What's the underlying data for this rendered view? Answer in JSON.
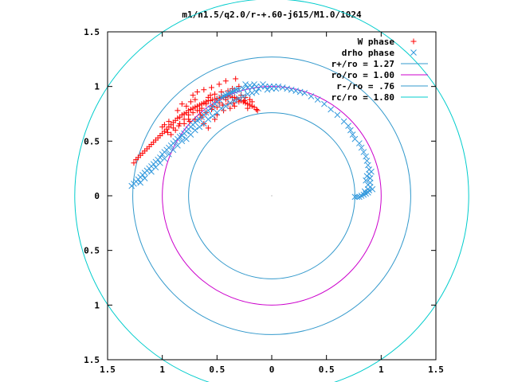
{
  "chart_data": {
    "type": "scatter",
    "title": "m1/n1.5/q2.0/r-+.60-j615/M1.0/1024",
    "xlabel": "",
    "ylabel": "",
    "xlim": [
      -1.5,
      1.5
    ],
    "ylim": [
      -1.5,
      1.5
    ],
    "x_tick_labels": [
      "1.5",
      "1",
      "0.5",
      "0",
      "0.5",
      "1",
      "1.5"
    ],
    "y_tick_labels": [
      "1.5",
      "1",
      "0.5",
      "0",
      "0.5",
      "1",
      "1.5"
    ],
    "grid": false,
    "legend_position": "top-right",
    "series": [
      {
        "name": "W phase",
        "marker": "+",
        "color": "#ff0000",
        "points": [
          [
            -1.26,
            0.3
          ],
          [
            -1.24,
            0.33
          ],
          [
            -1.22,
            0.35
          ],
          [
            -1.2,
            0.37
          ],
          [
            -1.18,
            0.39
          ],
          [
            -1.16,
            0.41
          ],
          [
            -1.14,
            0.43
          ],
          [
            -1.12,
            0.45
          ],
          [
            -1.1,
            0.47
          ],
          [
            -1.08,
            0.49
          ],
          [
            -1.06,
            0.51
          ],
          [
            -1.04,
            0.53
          ],
          [
            -1.02,
            0.55
          ],
          [
            -1.0,
            0.57
          ],
          [
            -0.98,
            0.59
          ],
          [
            -0.96,
            0.61
          ],
          [
            -0.94,
            0.63
          ],
          [
            -0.92,
            0.65
          ],
          [
            -0.9,
            0.67
          ],
          [
            -0.88,
            0.69
          ],
          [
            -0.86,
            0.71
          ],
          [
            -0.84,
            0.72
          ],
          [
            -0.82,
            0.74
          ],
          [
            -0.8,
            0.75
          ],
          [
            -0.78,
            0.76
          ],
          [
            -0.76,
            0.78
          ],
          [
            -0.74,
            0.79
          ],
          [
            -0.72,
            0.8
          ],
          [
            -0.7,
            0.81
          ],
          [
            -0.68,
            0.82
          ],
          [
            -0.66,
            0.83
          ],
          [
            -0.64,
            0.84
          ],
          [
            -0.62,
            0.85
          ],
          [
            -0.6,
            0.86
          ],
          [
            -0.58,
            0.87
          ],
          [
            -0.56,
            0.87
          ],
          [
            -0.54,
            0.88
          ],
          [
            -0.52,
            0.88
          ],
          [
            -0.5,
            0.89
          ],
          [
            -0.48,
            0.89
          ],
          [
            -0.46,
            0.9
          ],
          [
            -0.44,
            0.9
          ],
          [
            -0.42,
            0.9
          ],
          [
            -0.4,
            0.91
          ],
          [
            -0.38,
            0.91
          ],
          [
            -0.36,
            0.9
          ],
          [
            -0.34,
            0.9
          ],
          [
            -0.32,
            0.89
          ],
          [
            -0.3,
            0.88
          ],
          [
            -0.28,
            0.87
          ],
          [
            -0.26,
            0.86
          ],
          [
            -0.24,
            0.85
          ],
          [
            -0.22,
            0.84
          ],
          [
            -0.2,
            0.83
          ],
          [
            -0.18,
            0.82
          ],
          [
            -0.16,
            0.81
          ],
          [
            -0.14,
            0.79
          ],
          [
            -0.13,
            0.78
          ],
          [
            -0.95,
            0.58
          ],
          [
            -0.9,
            0.62
          ],
          [
            -0.85,
            0.64
          ],
          [
            -0.8,
            0.66
          ],
          [
            -0.75,
            0.68
          ],
          [
            -0.7,
            0.7
          ],
          [
            -0.65,
            0.74
          ],
          [
            -0.6,
            0.76
          ],
          [
            -0.55,
            0.79
          ],
          [
            -0.5,
            0.81
          ],
          [
            -0.45,
            0.83
          ],
          [
            -0.4,
            0.84
          ],
          [
            -0.35,
            0.85
          ],
          [
            -0.3,
            0.86
          ],
          [
            -0.25,
            0.87
          ],
          [
            -0.2,
            0.88
          ],
          [
            -0.72,
            0.92
          ],
          [
            -0.68,
            0.95
          ],
          [
            -0.62,
            0.97
          ],
          [
            -0.55,
            0.99
          ],
          [
            -0.48,
            1.02
          ],
          [
            -0.42,
            1.05
          ],
          [
            -0.33,
            1.07
          ],
          [
            -0.3,
            1.0
          ],
          [
            -0.58,
            0.9
          ],
          [
            -0.52,
            0.93
          ],
          [
            -0.46,
            0.95
          ],
          [
            -0.4,
            0.96
          ],
          [
            -0.36,
            0.98
          ],
          [
            -0.64,
            0.72
          ],
          [
            -0.5,
            0.74
          ],
          [
            -0.44,
            0.78
          ],
          [
            -0.82,
            0.84
          ],
          [
            -0.78,
            0.82
          ],
          [
            -0.74,
            0.86
          ],
          [
            -0.7,
            0.88
          ],
          [
            -0.66,
            0.78
          ],
          [
            -0.6,
            0.84
          ],
          [
            -0.56,
            0.92
          ],
          [
            -0.52,
            0.7
          ],
          [
            -0.86,
            0.78
          ],
          [
            -0.76,
            0.7
          ],
          [
            -0.62,
            0.66
          ],
          [
            -0.58,
            0.62
          ],
          [
            -0.48,
            0.85
          ],
          [
            -0.42,
            0.88
          ],
          [
            -0.38,
            0.8
          ],
          [
            -0.34,
            0.82
          ],
          [
            -0.28,
            0.92
          ],
          [
            -0.24,
            0.9
          ],
          [
            -0.22,
            0.8
          ],
          [
            -0.18,
            0.86
          ],
          [
            -1.0,
            0.63
          ],
          [
            -0.98,
            0.65
          ],
          [
            -0.94,
            0.68
          ],
          [
            -0.92,
            0.56
          ],
          [
            -0.88,
            0.6
          ],
          [
            -0.84,
            0.66
          ],
          [
            -0.8,
            0.7
          ],
          [
            -0.76,
            0.74
          ],
          [
            -0.72,
            0.76
          ],
          [
            -0.68,
            0.78
          ],
          [
            -0.64,
            0.8
          ],
          [
            -0.54,
            0.82
          ]
        ]
      },
      {
        "name": "drho phase",
        "marker": "x",
        "color": "#3399dd",
        "points": [
          [
            -1.28,
            0.09
          ],
          [
            -1.26,
            0.11
          ],
          [
            -1.24,
            0.13
          ],
          [
            -1.22,
            0.15
          ],
          [
            -1.2,
            0.17
          ],
          [
            -1.18,
            0.19
          ],
          [
            -1.16,
            0.21
          ],
          [
            -1.14,
            0.23
          ],
          [
            -1.12,
            0.25
          ],
          [
            -1.1,
            0.27
          ],
          [
            -1.08,
            0.29
          ],
          [
            -1.06,
            0.31
          ],
          [
            -1.04,
            0.33
          ],
          [
            -1.02,
            0.35
          ],
          [
            -1.0,
            0.38
          ],
          [
            -0.98,
            0.4
          ],
          [
            -0.96,
            0.42
          ],
          [
            -0.94,
            0.44
          ],
          [
            -0.92,
            0.46
          ],
          [
            -0.9,
            0.48
          ],
          [
            -0.88,
            0.5
          ],
          [
            -0.86,
            0.52
          ],
          [
            -0.84,
            0.54
          ],
          [
            -0.82,
            0.55
          ],
          [
            -0.8,
            0.57
          ],
          [
            -0.78,
            0.59
          ],
          [
            -0.76,
            0.61
          ],
          [
            -0.74,
            0.63
          ],
          [
            -0.72,
            0.65
          ],
          [
            -0.7,
            0.67
          ],
          [
            -0.68,
            0.69
          ],
          [
            -0.66,
            0.7
          ],
          [
            -0.64,
            0.72
          ],
          [
            -0.62,
            0.74
          ],
          [
            -0.6,
            0.76
          ],
          [
            -0.58,
            0.78
          ],
          [
            -0.56,
            0.8
          ],
          [
            -0.54,
            0.82
          ],
          [
            -0.52,
            0.84
          ],
          [
            -0.5,
            0.86
          ],
          [
            -0.48,
            0.88
          ],
          [
            -0.46,
            0.9
          ],
          [
            -0.44,
            0.91
          ],
          [
            -0.42,
            0.92
          ],
          [
            -0.4,
            0.93
          ],
          [
            -0.38,
            0.94
          ],
          [
            -0.36,
            0.95
          ],
          [
            -0.34,
            0.96
          ],
          [
            -0.32,
            0.97
          ],
          [
            -0.3,
            0.97
          ],
          [
            -0.26,
            0.98
          ],
          [
            -0.22,
            0.99
          ],
          [
            -0.18,
            0.99
          ],
          [
            -0.14,
            1.0
          ],
          [
            -0.1,
            1.0
          ],
          [
            -0.06,
            1.0
          ],
          [
            -0.02,
            1.0
          ],
          [
            0.02,
            1.0
          ],
          [
            0.06,
            1.0
          ],
          [
            0.1,
            0.99
          ],
          [
            0.14,
            0.98
          ],
          [
            0.18,
            0.97
          ],
          [
            0.22,
            0.96
          ],
          [
            0.26,
            0.95
          ],
          [
            0.3,
            0.94
          ],
          [
            0.36,
            0.91
          ],
          [
            0.42,
            0.88
          ],
          [
            0.48,
            0.84
          ],
          [
            0.54,
            0.79
          ],
          [
            0.6,
            0.74
          ],
          [
            0.66,
            0.68
          ],
          [
            0.7,
            0.64
          ],
          [
            0.72,
            0.6
          ],
          [
            0.74,
            0.56
          ],
          [
            0.76,
            0.52
          ],
          [
            0.8,
            0.48
          ],
          [
            0.82,
            0.44
          ],
          [
            0.84,
            0.4
          ],
          [
            0.86,
            0.36
          ],
          [
            0.87,
            0.32
          ],
          [
            0.88,
            0.28
          ],
          [
            0.89,
            0.24
          ],
          [
            0.89,
            0.2
          ],
          [
            0.9,
            0.16
          ],
          [
            0.9,
            0.12
          ],
          [
            0.9,
            0.08
          ],
          [
            0.89,
            0.05
          ],
          [
            0.88,
            0.03
          ],
          [
            0.86,
            0.02
          ],
          [
            0.84,
            0.01
          ],
          [
            0.82,
            0.0
          ],
          [
            0.8,
            -0.01
          ],
          [
            0.78,
            -0.01
          ],
          [
            0.76,
            -0.01
          ],
          [
            0.92,
            0.06
          ],
          [
            0.88,
            0.1
          ],
          [
            0.86,
            0.14
          ],
          [
            0.87,
            0.18
          ],
          [
            0.91,
            0.22
          ],
          [
            0.88,
            0.06
          ],
          [
            0.85,
            0.04
          ],
          [
            -1.2,
            0.12
          ],
          [
            -1.16,
            0.16
          ],
          [
            -1.1,
            0.22
          ],
          [
            -1.06,
            0.26
          ],
          [
            -1.02,
            0.3
          ],
          [
            -0.98,
            0.34
          ],
          [
            -0.94,
            0.38
          ],
          [
            -0.9,
            0.42
          ],
          [
            -0.86,
            0.46
          ],
          [
            -0.82,
            0.5
          ],
          [
            -0.78,
            0.52
          ],
          [
            -0.74,
            0.56
          ],
          [
            -0.7,
            0.6
          ],
          [
            -0.66,
            0.63
          ],
          [
            -0.62,
            0.66
          ],
          [
            -0.58,
            0.7
          ],
          [
            -0.54,
            0.73
          ],
          [
            -0.5,
            0.76
          ],
          [
            -0.46,
            0.8
          ],
          [
            -0.42,
            0.82
          ],
          [
            -0.38,
            0.85
          ],
          [
            -0.34,
            0.87
          ],
          [
            -0.3,
            0.89
          ],
          [
            -0.26,
            0.91
          ],
          [
            -0.22,
            0.93
          ],
          [
            -0.18,
            0.94
          ],
          [
            -0.14,
            0.95
          ],
          [
            -0.24,
            1.02
          ],
          [
            -0.2,
            1.01
          ],
          [
            -0.16,
            1.02
          ],
          [
            -0.08,
            1.02
          ],
          [
            0.0,
            0.98
          ],
          [
            0.04,
            0.98
          ],
          [
            -0.12,
            0.98
          ],
          [
            -0.04,
            0.97
          ]
        ]
      },
      {
        "name": "r+/ro = 1.27",
        "type": "circle",
        "r": 1.27,
        "color": "#3399cc"
      },
      {
        "name": "ro/ro = 1.00",
        "type": "circle",
        "r": 1.0,
        "color": "#cc00cc"
      },
      {
        "name": "r-/ro = .76",
        "type": "circle",
        "r": 0.76,
        "color": "#3399cc"
      },
      {
        "name": "rc/ro = 1.80",
        "type": "circle",
        "r": 1.8,
        "color": "#00cccc"
      }
    ]
  }
}
